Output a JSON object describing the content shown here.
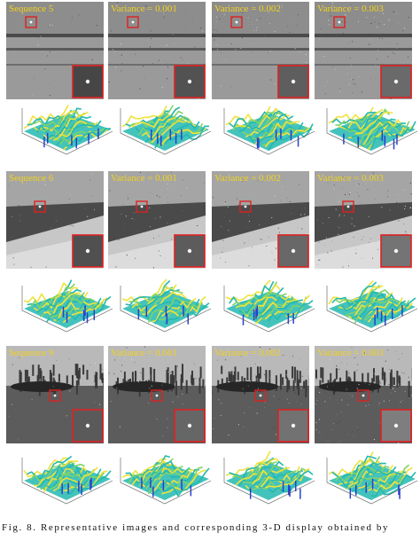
{
  "figure": {
    "columns": [
      "Sequence",
      "Variance = 0.001",
      "Variance = 0.002",
      "Variance = 0.003"
    ],
    "blocks": [
      {
        "sequence_label": "Sequence 5",
        "scene": "runway",
        "colors": {
          "sky": "#8d8d8d",
          "ground": "#9a9a9a"
        }
      },
      {
        "sequence_label": "Sequence 6",
        "scene": "slope",
        "colors": {
          "sky": "#a5a5a5",
          "ground": "#c7c7c7"
        }
      },
      {
        "sequence_label": "Sequence 9",
        "scene": "forest",
        "colors": {
          "sky": "#b9b9b9",
          "ground": "#5c5c5c"
        }
      }
    ],
    "colors": {
      "label": "#f2d21a",
      "marker": "#e02020",
      "surface_low": "#2a3fd0",
      "surface_mid": "#23b8b0",
      "surface_high": "#f0e23a"
    },
    "icons": [
      "target-box-icon",
      "zoom-inset-icon",
      "surface-plot-icon"
    ]
  },
  "caption": "Fig. 8.   Representative images and corresponding 3-D display obtained by"
}
